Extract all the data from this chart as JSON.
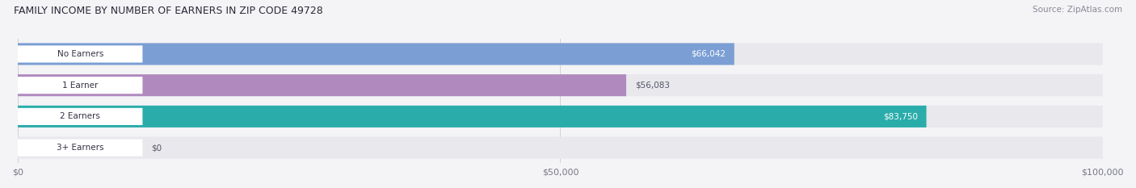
{
  "title": "FAMILY INCOME BY NUMBER OF EARNERS IN ZIP CODE 49728",
  "source": "Source: ZipAtlas.com",
  "categories": [
    "No Earners",
    "1 Earner",
    "2 Earners",
    "3+ Earners"
  ],
  "values": [
    66042,
    56083,
    83750,
    0
  ],
  "bar_colors": [
    "#7b9fd4",
    "#b08abf",
    "#2aadaa",
    "#aab4e0"
  ],
  "value_label_colors": [
    "#ffffff",
    "#555566",
    "#ffffff",
    "#555566"
  ],
  "value_label_inside": [
    true,
    false,
    true,
    false
  ],
  "xlim": [
    0,
    100000
  ],
  "xticks": [
    0,
    50000,
    100000
  ],
  "xticklabels": [
    "$0",
    "$50,000",
    "$100,000"
  ],
  "bar_bg_color": "#e8e8ed",
  "fig_bg_color": "#f4f4f6",
  "figsize": [
    14.06,
    2.33
  ],
  "dpi": 100,
  "bar_height": 0.7,
  "bar_gap": 0.1
}
